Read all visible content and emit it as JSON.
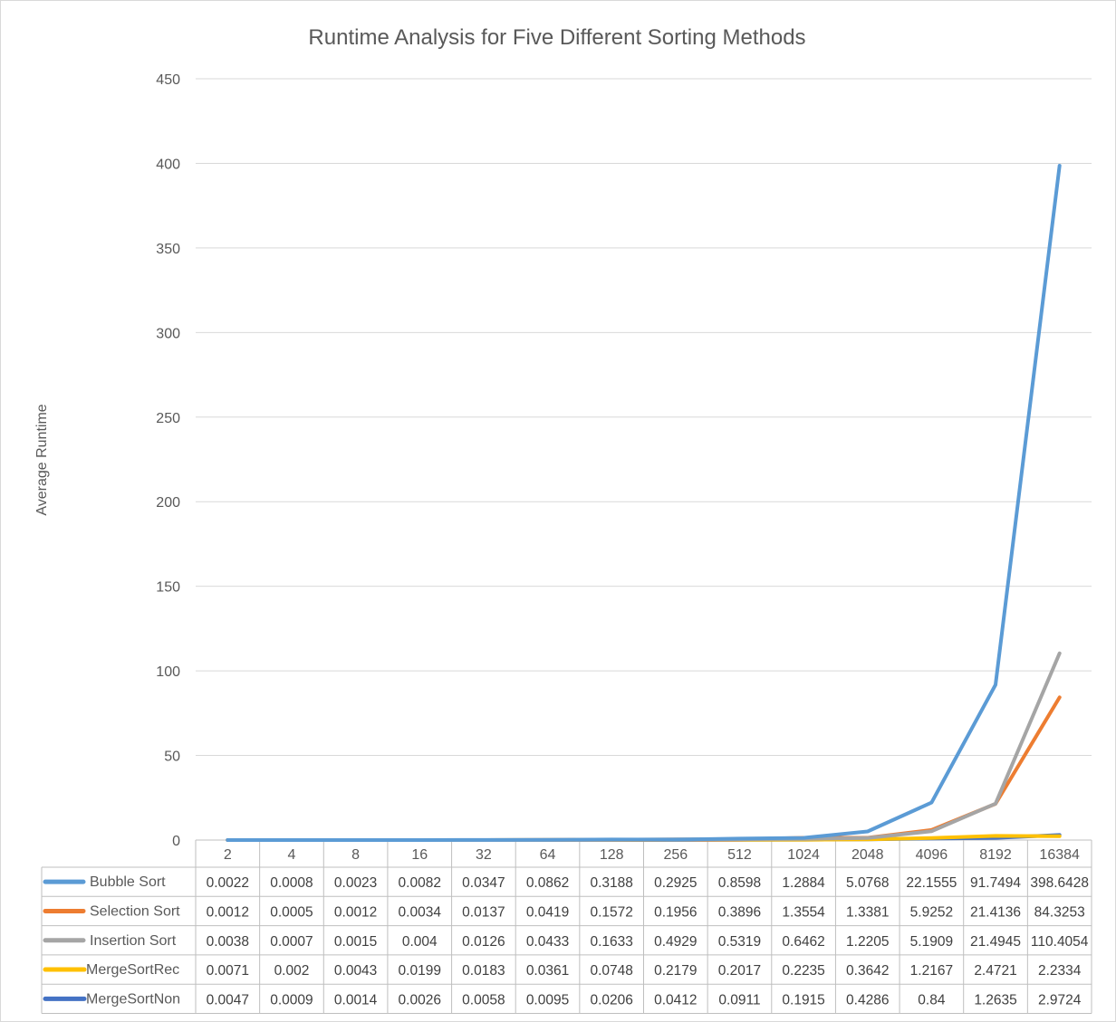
{
  "chart_data": {
    "type": "line",
    "title": "Runtime Analysis for Five Different Sorting Methods",
    "xlabel": "",
    "ylabel": "Average Runtime",
    "ylim": [
      0,
      450
    ],
    "yticks": [
      0,
      50,
      100,
      150,
      200,
      250,
      300,
      350,
      400,
      450
    ],
    "grid": true,
    "legend": "data-table",
    "categories": [
      "2",
      "4",
      "8",
      "16",
      "32",
      "64",
      "128",
      "256",
      "512",
      "1024",
      "2048",
      "4096",
      "8192",
      "16384"
    ],
    "series": [
      {
        "name": "Bubble Sort",
        "color": "#5b9bd5",
        "values": [
          0.0022,
          0.0008,
          0.0023,
          0.0082,
          0.0347,
          0.0862,
          0.3188,
          0.2925,
          0.8598,
          1.2884,
          5.0768,
          22.1555,
          91.7494,
          398.6428
        ],
        "labels": [
          "0.0022",
          "0.0008",
          "0.0023",
          "0.0082",
          "0.0347",
          "0.0862",
          "0.3188",
          "0.2925",
          "0.8598",
          "1.2884",
          "5.0768",
          "22.1555",
          "91.7494",
          "398.6428"
        ]
      },
      {
        "name": "Selection Sort",
        "color": "#ed7d31",
        "values": [
          0.0012,
          0.0005,
          0.0012,
          0.0034,
          0.0137,
          0.0419,
          0.1572,
          0.1956,
          0.3896,
          1.3554,
          1.3381,
          5.9252,
          21.4136,
          84.3253
        ],
        "labels": [
          "0.0012",
          "0.0005",
          "0.0012",
          "0.0034",
          "0.0137",
          "0.0419",
          "0.1572",
          "0.1956",
          "0.3896",
          "1.3554",
          "1.3381",
          "5.9252",
          "21.4136",
          "84.3253"
        ]
      },
      {
        "name": "Insertion Sort",
        "color": "#a5a5a5",
        "values": [
          0.0038,
          0.0007,
          0.0015,
          0.004,
          0.0126,
          0.0433,
          0.1633,
          0.4929,
          0.5319,
          0.6462,
          1.2205,
          5.1909,
          21.4945,
          110.4054
        ],
        "labels": [
          "0.0038",
          "0.0007",
          "0.0015",
          "0.004",
          "0.0126",
          "0.0433",
          "0.1633",
          "0.4929",
          "0.5319",
          "0.6462",
          "1.2205",
          "5.1909",
          "21.4945",
          "110.4054"
        ]
      },
      {
        "name": "MergeSortRec",
        "color": "#ffc000",
        "values": [
          0.0071,
          0.002,
          0.0043,
          0.0199,
          0.0183,
          0.0361,
          0.0748,
          0.2179,
          0.2017,
          0.2235,
          0.3642,
          1.2167,
          2.4721,
          2.2334
        ],
        "labels": [
          "0.0071",
          "0.002",
          "0.0043",
          "0.0199",
          "0.0183",
          "0.0361",
          "0.0748",
          "0.2179",
          "0.2017",
          "0.2235",
          "0.3642",
          "1.2167",
          "2.4721",
          "2.2334"
        ]
      },
      {
        "name": "MergeSortNon",
        "color": "#4472c4",
        "values": [
          0.0047,
          0.0009,
          0.0014,
          0.0026,
          0.0058,
          0.0095,
          0.0206,
          0.0412,
          0.0911,
          0.1915,
          0.4286,
          0.84,
          1.2635,
          2.9724
        ],
        "labels": [
          "0.0047",
          "0.0009",
          "0.0014",
          "0.0026",
          "0.0058",
          "0.0095",
          "0.0206",
          "0.0412",
          "0.0911",
          "0.1915",
          "0.4286",
          "0.84",
          "1.2635",
          "2.9724"
        ]
      }
    ]
  }
}
